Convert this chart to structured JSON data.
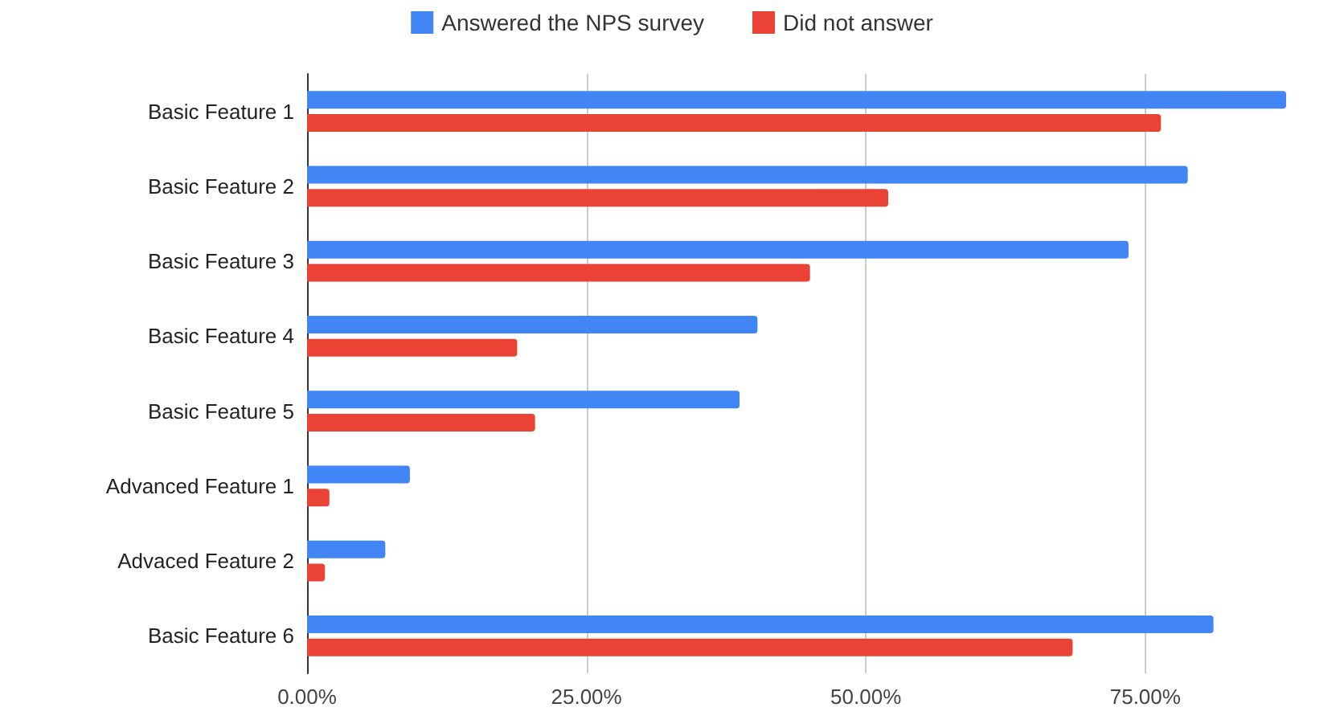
{
  "chart_data": {
    "type": "bar",
    "orientation": "horizontal",
    "categories": [
      "Basic Feature 1",
      "Basic Feature 2",
      "Basic Feature 3",
      "Basic Feature 4",
      "Basic Feature 5",
      "Advanced Feature 1",
      "Advaced Feature 2",
      "Basic Feature 6"
    ],
    "series": [
      {
        "name": "Answered the NPS survey",
        "color": "#4285f4",
        "values": [
          87.6,
          78.8,
          73.5,
          40.3,
          38.7,
          9.2,
          7.0,
          81.1
        ]
      },
      {
        "name": "Did not answer",
        "color": "#ea4335",
        "values": [
          76.4,
          52.0,
          45.0,
          18.8,
          20.4,
          2.0,
          1.6,
          68.5
        ]
      }
    ],
    "xlim": [
      0,
      87.6
    ],
    "xticks": [
      {
        "value": 0,
        "label": "0.00%"
      },
      {
        "value": 25,
        "label": "25.00%"
      },
      {
        "value": 50,
        "label": "50.00%"
      },
      {
        "value": 75,
        "label": "75.00%"
      }
    ],
    "grid": "x",
    "legend": "top"
  }
}
